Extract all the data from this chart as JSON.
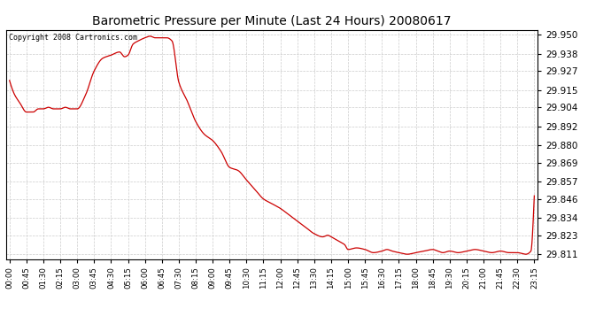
{
  "title": "Barometric Pressure per Minute (Last 24 Hours) 20080617",
  "copyright_text": "Copyright 2008 Cartronics.com",
  "line_color": "#cc0000",
  "background_color": "#ffffff",
  "grid_color": "#cccccc",
  "y_ticks": [
    29.811,
    29.823,
    29.834,
    29.846,
    29.857,
    29.869,
    29.88,
    29.892,
    29.904,
    29.915,
    29.927,
    29.938,
    29.95
  ],
  "ylim": [
    29.808,
    29.953
  ],
  "x_labels": [
    "00:00",
    "00:45",
    "01:30",
    "02:15",
    "03:00",
    "03:45",
    "04:30",
    "05:15",
    "06:00",
    "06:45",
    "07:30",
    "08:15",
    "09:00",
    "09:45",
    "10:30",
    "11:15",
    "12:00",
    "12:45",
    "13:30",
    "14:15",
    "15:00",
    "15:45",
    "16:30",
    "17:15",
    "18:00",
    "18:45",
    "19:30",
    "20:15",
    "21:00",
    "21:45",
    "22:30",
    "23:15"
  ],
  "key_points": [
    [
      0,
      29.921
    ],
    [
      0.3,
      29.912
    ],
    [
      0.6,
      29.907
    ],
    [
      1.0,
      29.901
    ],
    [
      1.4,
      29.901
    ],
    [
      1.7,
      29.903
    ],
    [
      2.0,
      29.903
    ],
    [
      2.3,
      29.904
    ],
    [
      2.6,
      29.903
    ],
    [
      3.0,
      29.903
    ],
    [
      3.3,
      29.904
    ],
    [
      3.6,
      29.903
    ],
    [
      4.0,
      29.903
    ],
    [
      4.5,
      29.912
    ],
    [
      5.0,
      29.927
    ],
    [
      5.5,
      29.935
    ],
    [
      6.0,
      29.937
    ],
    [
      6.5,
      29.939
    ],
    [
      6.8,
      29.936
    ],
    [
      7.0,
      29.937
    ],
    [
      7.3,
      29.944
    ],
    [
      7.6,
      29.946
    ],
    [
      8.0,
      29.948
    ],
    [
      8.3,
      29.949
    ],
    [
      8.6,
      29.948
    ],
    [
      9.0,
      29.948
    ],
    [
      9.3,
      29.948
    ],
    [
      9.6,
      29.946
    ],
    [
      10.0,
      29.92
    ],
    [
      10.5,
      29.908
    ],
    [
      11.0,
      29.895
    ],
    [
      11.5,
      29.887
    ],
    [
      12.0,
      29.883
    ],
    [
      12.5,
      29.876
    ],
    [
      13.0,
      29.866
    ],
    [
      13.5,
      29.864
    ],
    [
      14.0,
      29.858
    ],
    [
      14.5,
      29.852
    ],
    [
      15.0,
      29.846
    ],
    [
      15.5,
      29.843
    ],
    [
      16.0,
      29.84
    ],
    [
      16.5,
      29.836
    ],
    [
      17.0,
      29.832
    ],
    [
      17.5,
      29.828
    ],
    [
      18.0,
      29.824
    ],
    [
      18.5,
      29.822
    ],
    [
      18.8,
      29.823
    ],
    [
      19.0,
      29.822
    ],
    [
      19.5,
      29.819
    ],
    [
      19.8,
      29.817
    ],
    [
      20.0,
      29.814
    ],
    [
      20.5,
      29.815
    ],
    [
      21.0,
      29.814
    ],
    [
      21.5,
      29.812
    ],
    [
      22.0,
      29.813
    ],
    [
      22.3,
      29.814
    ],
    [
      22.6,
      29.813
    ],
    [
      23.0,
      29.812
    ],
    [
      23.5,
      29.811
    ],
    [
      24.0,
      29.812
    ],
    [
      24.5,
      29.813
    ],
    [
      25.0,
      29.814
    ],
    [
      25.3,
      29.813
    ],
    [
      25.6,
      29.812
    ],
    [
      26.0,
      29.813
    ],
    [
      26.5,
      29.812
    ],
    [
      27.0,
      29.813
    ],
    [
      27.5,
      29.814
    ],
    [
      28.0,
      29.813
    ],
    [
      28.5,
      29.812
    ],
    [
      29.0,
      29.813
    ],
    [
      29.5,
      29.812
    ],
    [
      30.0,
      29.812
    ],
    [
      30.5,
      29.811
    ],
    [
      30.8,
      29.813
    ],
    [
      31.0,
      29.848
    ]
  ]
}
